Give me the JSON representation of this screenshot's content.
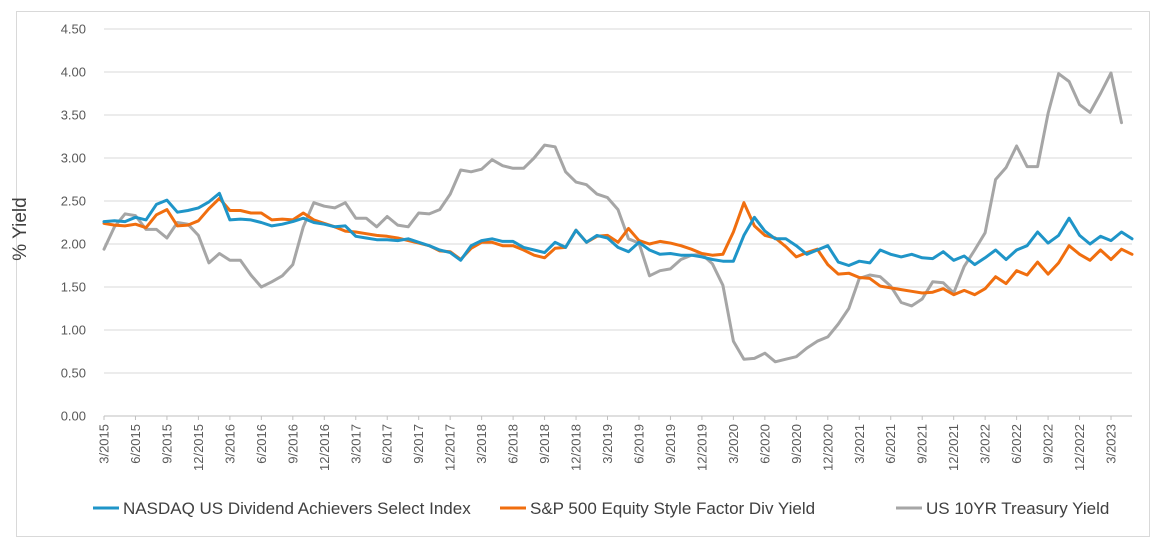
{
  "chart_data": {
    "type": "line",
    "title": "",
    "xlabel": "",
    "ylabel": "% Yield",
    "ylim": [
      0,
      4.5
    ],
    "yticks": [
      "0.00",
      "0.50",
      "1.00",
      "1.50",
      "2.00",
      "2.50",
      "3.00",
      "3.50",
      "4.00",
      "4.50"
    ],
    "grid": true,
    "legend_position": "bottom",
    "x_tick_labels": [
      "3/2015",
      "6/2015",
      "9/2015",
      "12/2015",
      "3/2016",
      "6/2016",
      "9/2016",
      "12/2016",
      "3/2017",
      "6/2017",
      "9/2017",
      "12/2017",
      "3/2018",
      "6/2018",
      "9/2018",
      "12/2018",
      "3/2019",
      "6/2019",
      "9/2019",
      "12/2019",
      "3/2020",
      "6/2020",
      "9/2020",
      "12/2020",
      "3/2021",
      "6/2021",
      "9/2021",
      "12/2021",
      "3/2022",
      "6/2022",
      "9/2022",
      "12/2022",
      "3/2023"
    ],
    "series": [
      {
        "name": "NASDAQ US Dividend Achievers Select Index",
        "color": "#1f95c8",
        "values": [
          2.26,
          2.27,
          2.26,
          2.31,
          2.28,
          2.46,
          2.51,
          2.37,
          2.39,
          2.42,
          2.49,
          2.59,
          2.28,
          2.29,
          2.28,
          2.25,
          2.21,
          2.23,
          2.26,
          2.3,
          2.25,
          2.23,
          2.2,
          2.21,
          2.09,
          2.07,
          2.05,
          2.05,
          2.04,
          2.06,
          2.02,
          1.98,
          1.93,
          1.9,
          1.81,
          1.98,
          2.04,
          2.06,
          2.03,
          2.03,
          1.96,
          1.93,
          1.9,
          2.02,
          1.96,
          2.16,
          2.02,
          2.1,
          2.07,
          1.96,
          1.91,
          2.02,
          1.93,
          1.88,
          1.89,
          1.87,
          1.87,
          1.85,
          1.82,
          1.8,
          1.8,
          2.1,
          2.31,
          2.15,
          2.06,
          2.06,
          1.98,
          1.88,
          1.93,
          1.98,
          1.79,
          1.75,
          1.8,
          1.78,
          1.93,
          1.88,
          1.85,
          1.88,
          1.84,
          1.83,
          1.91,
          1.81,
          1.86,
          1.76,
          1.84,
          1.93,
          1.82,
          1.93,
          1.98,
          2.14,
          2.01,
          2.1,
          2.3,
          2.1,
          2.0,
          2.09,
          2.04,
          2.14,
          2.06
        ]
      },
      {
        "name": "S&P 500 Equity Style Factor Div Yield",
        "color": "#f06e0f",
        "values": [
          2.24,
          2.22,
          2.21,
          2.23,
          2.19,
          2.34,
          2.4,
          2.21,
          2.22,
          2.27,
          2.41,
          2.53,
          2.39,
          2.39,
          2.36,
          2.36,
          2.28,
          2.29,
          2.28,
          2.36,
          2.28,
          2.24,
          2.2,
          2.15,
          2.14,
          2.12,
          2.1,
          2.09,
          2.07,
          2.04,
          2.01,
          1.98,
          1.92,
          1.91,
          1.82,
          1.95,
          2.02,
          2.02,
          1.98,
          1.98,
          1.93,
          1.87,
          1.84,
          1.95,
          1.96,
          2.16,
          2.02,
          2.09,
          2.1,
          2.02,
          2.18,
          2.04,
          2.0,
          2.03,
          2.01,
          1.98,
          1.94,
          1.89,
          1.87,
          1.88,
          2.14,
          2.48,
          2.21,
          2.1,
          2.07,
          1.97,
          1.85,
          1.9,
          1.94,
          1.76,
          1.65,
          1.66,
          1.61,
          1.6,
          1.51,
          1.49,
          1.47,
          1.45,
          1.43,
          1.44,
          1.48,
          1.41,
          1.46,
          1.41,
          1.48,
          1.62,
          1.54,
          1.69,
          1.64,
          1.79,
          1.65,
          1.78,
          1.98,
          1.88,
          1.81,
          1.93,
          1.82,
          1.94,
          1.88
        ]
      },
      {
        "name": "US 10YR Treasury Yield",
        "color": "#a6a6a6",
        "values": [
          1.94,
          2.2,
          2.35,
          2.33,
          2.17,
          2.17,
          2.07,
          2.25,
          2.23,
          2.1,
          1.78,
          1.89,
          1.81,
          1.81,
          1.64,
          1.5,
          1.56,
          1.63,
          1.76,
          2.2,
          2.48,
          2.44,
          2.42,
          2.48,
          2.3,
          2.3,
          2.2,
          2.32,
          2.22,
          2.2,
          2.36,
          2.35,
          2.4,
          2.58,
          2.86,
          2.84,
          2.87,
          2.98,
          2.91,
          2.88,
          2.88,
          3.0,
          3.15,
          3.13,
          2.84,
          2.72,
          2.69,
          2.58,
          2.54,
          2.4,
          2.06,
          2.01,
          1.63,
          1.69,
          1.71,
          1.82,
          1.87,
          1.88,
          1.77,
          1.52,
          0.87,
          0.66,
          0.67,
          0.73,
          0.63,
          0.66,
          0.69,
          0.79,
          0.87,
          0.92,
          1.07,
          1.25,
          1.6,
          1.64,
          1.62,
          1.51,
          1.32,
          1.28,
          1.36,
          1.56,
          1.55,
          1.43,
          1.74,
          1.93,
          2.13,
          2.75,
          2.89,
          3.14,
          2.9,
          2.9,
          3.52,
          3.98,
          3.89,
          3.62,
          3.53,
          3.75,
          3.99,
          3.41
        ]
      }
    ]
  }
}
